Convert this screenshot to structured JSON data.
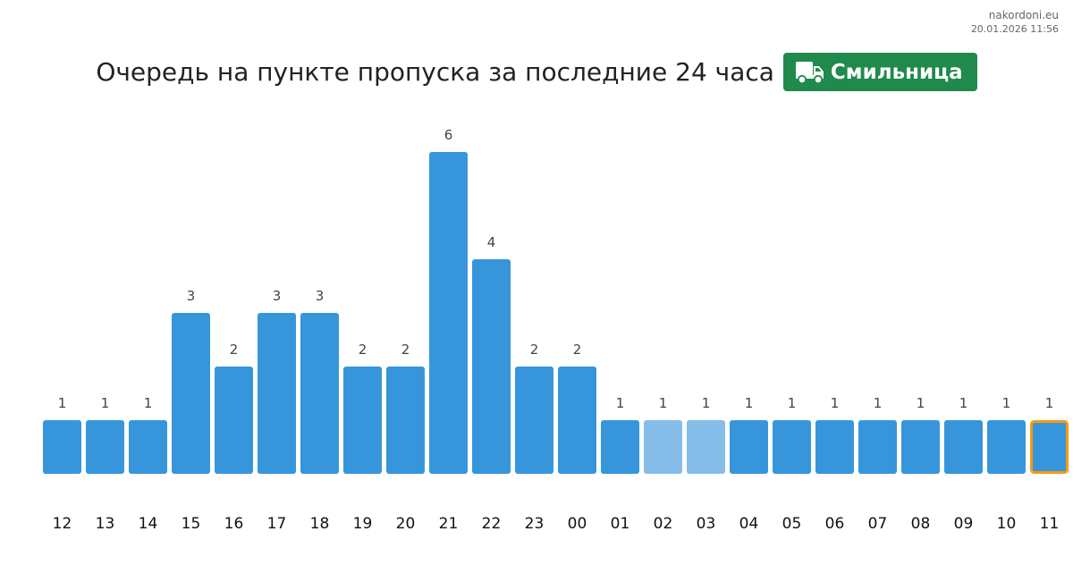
{
  "site": {
    "domain": "nakordoni.eu",
    "datetime": "20.01.2026 11:56"
  },
  "title": "Очередь на пункте пропуска за последние 24 часа",
  "badge": {
    "label": "Смильница",
    "icon": "truck-icon",
    "color": "#1f8a4c"
  },
  "colors": {
    "bar": "#3796db",
    "bar_light": "#85bde8",
    "highlight_border": "#f39c12",
    "value_label": "#444444",
    "axis_label": "#111111"
  },
  "chart_data": {
    "type": "bar",
    "title": "Очередь на пункте пропуска за последние 24 часа",
    "xlabel": "",
    "ylabel": "",
    "categories": [
      "12",
      "13",
      "14",
      "15",
      "16",
      "17",
      "18",
      "19",
      "20",
      "21",
      "22",
      "23",
      "00",
      "01",
      "02",
      "03",
      "04",
      "05",
      "06",
      "07",
      "08",
      "09",
      "10",
      "11"
    ],
    "values": [
      1,
      1,
      1,
      3,
      2,
      3,
      3,
      2,
      2,
      6,
      4,
      2,
      2,
      1,
      1,
      1,
      1,
      1,
      1,
      1,
      1,
      1,
      1,
      1
    ],
    "ylim": [
      0,
      6
    ],
    "grid": false,
    "legend": "none",
    "data_labels": true,
    "light_bars": [
      "02",
      "03"
    ],
    "highlighted_bar": "11"
  }
}
